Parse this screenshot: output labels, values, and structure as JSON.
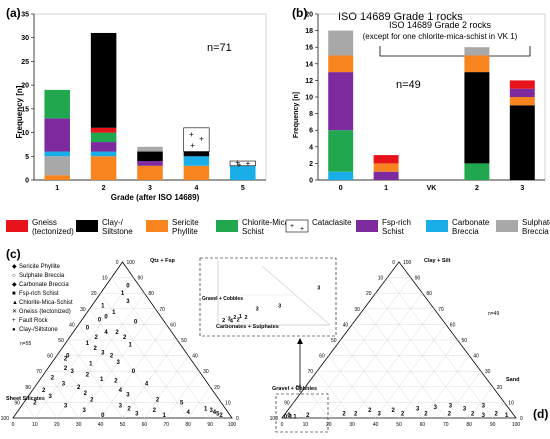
{
  "chart_data": [
    {
      "id": "a",
      "panel_label": "(a)",
      "type": "bar",
      "stacked": true,
      "xlabel": "Grade (after ISO 14689)",
      "ylabel": "Frequency [n]",
      "ylim": [
        0,
        35
      ],
      "yticks": [
        0,
        5,
        10,
        15,
        20,
        25,
        30,
        35
      ],
      "annotation": "n=71",
      "categories": [
        "1",
        "2",
        "3",
        "4",
        "5"
      ],
      "series": [
        {
          "key": "sericite",
          "values": [
            1,
            5,
            3,
            3,
            0
          ]
        },
        {
          "key": "sulphate",
          "values": [
            4,
            0,
            0,
            0,
            0
          ]
        },
        {
          "key": "carbonate",
          "values": [
            1,
            1,
            0,
            2,
            3
          ]
        },
        {
          "key": "fsp",
          "values": [
            7,
            2,
            1,
            0,
            0
          ]
        },
        {
          "key": "chlorite",
          "values": [
            6,
            2,
            0,
            0,
            0
          ]
        },
        {
          "key": "gneiss",
          "values": [
            0,
            1,
            0,
            0,
            0
          ]
        },
        {
          "key": "clay",
          "values": [
            0,
            20,
            2,
            1,
            0
          ]
        },
        {
          "key": "sulphate",
          "values": [
            0,
            0,
            1,
            0,
            0
          ]
        },
        {
          "key": "cataclasite",
          "values": [
            0,
            0,
            0,
            5,
            1
          ]
        }
      ]
    },
    {
      "id": "b",
      "panel_label": "(b)",
      "type": "bar",
      "stacked": true,
      "ylabel": "Frequency [n]",
      "ylim": [
        0,
        20
      ],
      "yticks": [
        0,
        2,
        4,
        6,
        8,
        10,
        12,
        14,
        16,
        18,
        20
      ],
      "annotation": "n=49",
      "grade1_label": "ISO 14689 Grade 1 rocks",
      "grade2_label": "ISO 14689 Grade 2 rocks",
      "grade2_note": "(except for one chlorite-mica-schist in VK 1)",
      "categories": [
        "0",
        "1",
        "VK",
        "2",
        "3"
      ],
      "series": [
        {
          "key": "carbonate",
          "values": [
            1,
            0,
            0,
            0,
            0
          ]
        },
        {
          "key": "chlorite",
          "values": [
            5,
            0,
            0,
            2,
            0
          ]
        },
        {
          "key": "fsp",
          "values": [
            7,
            1,
            0,
            0,
            0
          ]
        },
        {
          "key": "clay",
          "values": [
            0,
            0,
            0,
            11,
            9
          ]
        },
        {
          "key": "sericite",
          "values": [
            2,
            1,
            0,
            2,
            1
          ]
        },
        {
          "key": "sulphate",
          "values": [
            3,
            0,
            0,
            1,
            0
          ]
        },
        {
          "key": "fsp",
          "values": [
            0,
            0,
            0,
            0,
            1
          ]
        },
        {
          "key": "gneiss",
          "values": [
            0,
            1,
            0,
            0,
            1
          ]
        }
      ]
    },
    {
      "id": "c",
      "panel_label": "(c)",
      "type": "scatter",
      "subtype": "ternary",
      "annotation": "n=55",
      "apex_top": "Qtz + Fsp",
      "apex_right": "Carbonates + Sulphates",
      "apex_left": "Sheet Silicates",
      "ticks": [
        "0",
        "10",
        "20",
        "30",
        "40",
        "50",
        "60",
        "70",
        "80",
        "90",
        "100"
      ],
      "legend": [
        {
          "key": "sericite",
          "label": "Sericite Phyllite"
        },
        {
          "key": "sulphate",
          "label": "Sulphate Breccia"
        },
        {
          "key": "carbonate",
          "label": "Carbonate Breccia"
        },
        {
          "key": "fsp",
          "label": "Fsp-rich Schist"
        },
        {
          "key": "chlorite",
          "label": "Chlorite-Mica-Schist"
        },
        {
          "key": "gneiss",
          "label": "Gneiss (tectonized)"
        },
        {
          "key": "fault",
          "label": "Fault Rock"
        },
        {
          "key": "clay",
          "label": "Clay-/Siltstone"
        }
      ],
      "points": [
        {
          "a": 85,
          "b": 10,
          "c": 5,
          "g": "0",
          "k": "sulphate"
        },
        {
          "a": 80,
          "b": 10,
          "c": 10,
          "g": "1",
          "k": "clay"
        },
        {
          "a": 75,
          "b": 15,
          "c": 10,
          "g": "3",
          "k": "gneiss"
        },
        {
          "a": 68,
          "b": 12,
          "c": 20,
          "g": "1",
          "k": "clay"
        },
        {
          "a": 65,
          "b": 10,
          "c": 25,
          "g": "0",
          "k": "fsp"
        },
        {
          "a": 63,
          "b": 8,
          "c": 29,
          "g": "0",
          "k": "clay"
        },
        {
          "a": 58,
          "b": 5,
          "c": 37,
          "g": "0",
          "k": "clay"
        },
        {
          "a": 55,
          "b": 20,
          "c": 25,
          "g": "2",
          "k": "clay"
        },
        {
          "a": 52,
          "b": 12,
          "c": 36,
          "g": "2",
          "k": "clay"
        },
        {
          "a": 55,
          "b": 15,
          "c": 30,
          "g": "4",
          "k": "sericite"
        },
        {
          "a": 52,
          "b": 25,
          "c": 23,
          "g": "2",
          "k": "clay"
        },
        {
          "a": 48,
          "b": 10,
          "c": 42,
          "g": "1",
          "k": "clay"
        },
        {
          "a": 47,
          "b": 30,
          "c": 23,
          "g": "1",
          "k": "sericite"
        },
        {
          "a": 45,
          "b": 15,
          "c": 40,
          "g": "2",
          "k": "clay"
        },
        {
          "a": 42,
          "b": 20,
          "c": 38,
          "g": "3",
          "k": "sericite"
        },
        {
          "a": 40,
          "b": 25,
          "c": 35,
          "g": "2",
          "k": "clay"
        },
        {
          "a": 40,
          "b": 5,
          "c": 55,
          "g": "0",
          "k": "clay"
        },
        {
          "a": 38,
          "b": 5,
          "c": 57,
          "g": "2",
          "k": "clay"
        },
        {
          "a": 36,
          "b": 30,
          "c": 34,
          "g": "3",
          "k": "sericite"
        },
        {
          "a": 35,
          "b": 18,
          "c": 47,
          "g": "1",
          "k": "clay"
        },
        {
          "a": 32,
          "b": 8,
          "c": 60,
          "g": "2",
          "k": "clay"
        },
        {
          "a": 30,
          "b": 12,
          "c": 58,
          "g": "3",
          "k": "clay"
        },
        {
          "a": 30,
          "b": 40,
          "c": 30,
          "g": "0",
          "k": "clay"
        },
        {
          "a": 28,
          "b": 20,
          "c": 52,
          "g": "2",
          "k": "clay"
        },
        {
          "a": 26,
          "b": 5,
          "c": 69,
          "g": "2",
          "k": "clay"
        },
        {
          "a": 25,
          "b": 28,
          "c": 47,
          "g": "1",
          "k": "clay"
        },
        {
          "a": 24,
          "b": 35,
          "c": 41,
          "g": "2",
          "k": "sericite"
        },
        {
          "a": 22,
          "b": 12,
          "c": 66,
          "g": "3",
          "k": "clay"
        },
        {
          "a": 22,
          "b": 50,
          "c": 28,
          "g": "4",
          "k": "sericite"
        },
        {
          "a": 20,
          "b": 20,
          "c": 60,
          "g": "2",
          "k": "clay"
        },
        {
          "a": 18,
          "b": 5,
          "c": 77,
          "g": "2",
          "k": "clay"
        },
        {
          "a": 18,
          "b": 40,
          "c": 42,
          "g": "4",
          "k": "gneiss"
        },
        {
          "a": 16,
          "b": 25,
          "c": 59,
          "g": "2",
          "k": "clay"
        },
        {
          "a": 15,
          "b": 45,
          "c": 40,
          "g": "3",
          "k": "sericite"
        },
        {
          "a": 14,
          "b": 10,
          "c": 76,
          "g": "3",
          "k": "clay"
        },
        {
          "a": 12,
          "b": 60,
          "c": 28,
          "g": "2",
          "k": "clay"
        },
        {
          "a": 12,
          "b": 30,
          "c": 58,
          "g": "2",
          "k": "clay"
        },
        {
          "a": 10,
          "b": 5,
          "c": 85,
          "g": "2",
          "k": "sericite"
        },
        {
          "a": 10,
          "b": 72,
          "c": 18,
          "g": "5",
          "k": "sericite"
        },
        {
          "a": 8,
          "b": 20,
          "c": 72,
          "g": "3",
          "k": "clay"
        },
        {
          "a": 8,
          "b": 45,
          "c": 47,
          "g": "3",
          "k": "clay"
        },
        {
          "a": 6,
          "b": 85,
          "c": 9,
          "g": "1",
          "k": "sulphate"
        },
        {
          "a": 5,
          "b": 30,
          "c": 65,
          "g": "3",
          "k": "clay"
        },
        {
          "a": 5,
          "b": 88,
          "c": 7,
          "g": "3",
          "k": "carbonate"
        },
        {
          "a": 4,
          "b": 90,
          "c": 6,
          "g": "4",
          "k": "carbonate"
        },
        {
          "a": 3,
          "b": 92,
          "c": 5,
          "g": "5",
          "k": "carbonate"
        },
        {
          "a": 2,
          "b": 94,
          "c": 4,
          "g": "2",
          "k": "carbonate"
        },
        {
          "a": 4,
          "b": 78,
          "c": 18,
          "g": "4",
          "k": "sericite"
        },
        {
          "a": 3,
          "b": 55,
          "c": 42,
          "g": "3",
          "k": "sericite"
        },
        {
          "a": 2,
          "b": 68,
          "c": 30,
          "g": "1",
          "k": "clay"
        },
        {
          "a": 2,
          "b": 40,
          "c": 58,
          "g": "0",
          "k": "clay"
        },
        {
          "a": 5,
          "b": 62,
          "c": 33,
          "g": "2",
          "k": "clay"
        },
        {
          "a": 62,
          "b": 25,
          "c": 13,
          "g": "0",
          "k": "fsp"
        },
        {
          "a": 72,
          "b": 5,
          "c": 23,
          "g": "1",
          "k": "clay"
        },
        {
          "a": 6,
          "b": 50,
          "c": 44,
          "g": "2",
          "k": "clay"
        }
      ]
    },
    {
      "id": "d",
      "panel_label": "(d)",
      "type": "scatter",
      "subtype": "ternary",
      "annotation": "n=49",
      "apex_top": "Clay + Silt",
      "apex_right": "Sand",
      "apex_left": "Gravel + Cobbles",
      "ticks": [
        "0",
        "10",
        "20",
        "30",
        "40",
        "50",
        "60",
        "70",
        "80",
        "90",
        "100"
      ],
      "points": [
        {
          "a": 2,
          "b": 95,
          "c": 3,
          "g": "1",
          "k": "clay"
        },
        {
          "a": 3,
          "b": 90,
          "c": 7,
          "g": "2",
          "k": "clay"
        },
        {
          "a": 2,
          "b": 85,
          "c": 13,
          "g": "3",
          "k": "clay"
        },
        {
          "a": 3,
          "b": 80,
          "c": 17,
          "g": "2",
          "k": "clay"
        },
        {
          "a": 8,
          "b": 82,
          "c": 10,
          "g": "3",
          "k": "clay"
        },
        {
          "a": 6,
          "b": 75,
          "c": 19,
          "g": "3",
          "k": "clay"
        },
        {
          "a": 3,
          "b": 70,
          "c": 27,
          "g": "2",
          "k": "clay"
        },
        {
          "a": 8,
          "b": 68,
          "c": 24,
          "g": "3",
          "k": "clay"
        },
        {
          "a": 7,
          "b": 62,
          "c": 31,
          "g": "3",
          "k": "clay"
        },
        {
          "a": 3,
          "b": 60,
          "c": 37,
          "g": "2",
          "k": "clay"
        },
        {
          "a": 6,
          "b": 55,
          "c": 39,
          "g": "3",
          "k": "clay"
        },
        {
          "a": 3,
          "b": 50,
          "c": 47,
          "g": "2",
          "k": "clay"
        },
        {
          "a": 5,
          "b": 45,
          "c": 50,
          "g": "2",
          "k": "clay"
        },
        {
          "a": 3,
          "b": 40,
          "c": 57,
          "g": "3",
          "k": "clay"
        },
        {
          "a": 5,
          "b": 35,
          "c": 60,
          "g": "2",
          "k": "clay"
        },
        {
          "a": 3,
          "b": 30,
          "c": 67,
          "g": "2",
          "k": "clay"
        },
        {
          "a": 3,
          "b": 25,
          "c": 72,
          "g": "2",
          "k": "clay"
        },
        {
          "a": 2,
          "b": 10,
          "c": 88,
          "g": "2",
          "k": "sericite"
        },
        {
          "a": 1,
          "b": 5,
          "c": 94,
          "g": "1",
          "k": "gneiss"
        },
        {
          "a": 1,
          "b": 3,
          "c": 96,
          "g": "3",
          "k": "clay"
        },
        {
          "a": 2,
          "b": 2,
          "c": 96,
          "g": "0",
          "k": "carbonate"
        },
        {
          "a": 1,
          "b": 1,
          "c": 98,
          "g": "0",
          "k": "fsp"
        }
      ]
    },
    {
      "id": "inset",
      "type": "scatter",
      "subtype": "ternary-zoom",
      "label_gc": "Gravel + Cobbles",
      "points": [
        {
          "x": 0.35,
          "y": 0.25,
          "g": "3",
          "k": "sulphate"
        },
        {
          "x": 0.55,
          "y": 0.3,
          "g": "3",
          "k": "fsp"
        },
        {
          "x": 0.9,
          "y": 0.6,
          "g": "3",
          "k": "clay"
        },
        {
          "x": 0.05,
          "y": 0.05,
          "g": "2",
          "k": "clay"
        },
        {
          "x": 0.1,
          "y": 0.08,
          "g": "3",
          "k": "clay"
        },
        {
          "x": 0.15,
          "y": 0.1,
          "g": "2",
          "k": "clay"
        },
        {
          "x": 0.2,
          "y": 0.12,
          "g": "1",
          "k": "clay"
        },
        {
          "x": 0.12,
          "y": 0.04,
          "g": "4",
          "k": "clay"
        },
        {
          "x": 0.18,
          "y": 0.06,
          "g": "2",
          "k": "clay"
        },
        {
          "x": 0.25,
          "y": 0.1,
          "g": "2",
          "k": "clay"
        }
      ]
    }
  ],
  "legend_bar": [
    {
      "key": "gneiss",
      "label": "Gneiss (tectonized)",
      "color": "#e8121a"
    },
    {
      "key": "clay",
      "label": "Clay-/ Siltstone",
      "color": "#000000"
    },
    {
      "key": "sericite",
      "label": "Sericite Phyllite",
      "color": "#f7841f"
    },
    {
      "key": "chlorite",
      "label": "Chlorite-Mica Schist",
      "color": "#21a84f"
    },
    {
      "key": "cataclasite",
      "label": "Cataclasite",
      "color": "#ffffff"
    },
    {
      "key": "fsp",
      "label": "Fsp-rich Schist",
      "color": "#7c2a9e"
    },
    {
      "key": "carbonate",
      "label": "Carbonate Breccia",
      "color": "#1aaee8"
    },
    {
      "key": "sulphate",
      "label": "Sulphate Breccia",
      "color": "#a8a8a8"
    }
  ],
  "point_colors": {
    "sericite": "#f07020",
    "sulphate": "#7a7a7a",
    "carbonate": "#1aa0dc",
    "fsp": "#7c2a9e",
    "chlorite": "#21a84f",
    "gneiss": "#e8121a",
    "fault": "#444444",
    "clay": "#000000"
  }
}
